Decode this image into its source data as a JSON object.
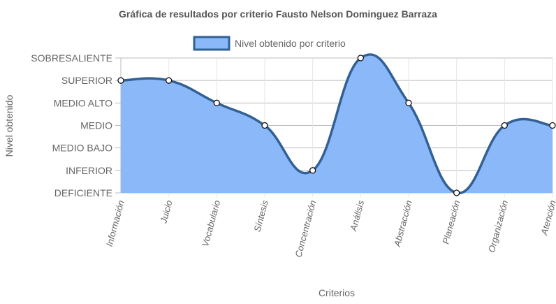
{
  "chart_data": {
    "type": "area",
    "title": "Gráfica de resultados por criterio Fausto Nelson Dominguez Barraza",
    "xlabel": "Criterios",
    "ylabel": "Nivel obtenido",
    "categories": [
      "Información",
      "Juicio",
      "Vocabulario",
      "Síntesis",
      "Concentración",
      "Análisis",
      "Abstracción",
      "Planeación",
      "Organización",
      "Atención"
    ],
    "levels": [
      "DEFICIENTE",
      "INFERIOR",
      "MEDIO BAJO",
      "MEDIO",
      "MEDIO ALTO",
      "SUPERIOR",
      "SOBRESALIENTE"
    ],
    "ylim": [
      0,
      6
    ],
    "series": [
      {
        "name": "Nivel obtenido por criterio",
        "values": [
          5,
          5,
          4,
          3,
          1,
          6,
          4,
          0,
          3,
          3
        ],
        "fill_color": "#8ab8f8",
        "line_color": "#336094"
      }
    ],
    "legend_position": "top",
    "grid": true
  }
}
